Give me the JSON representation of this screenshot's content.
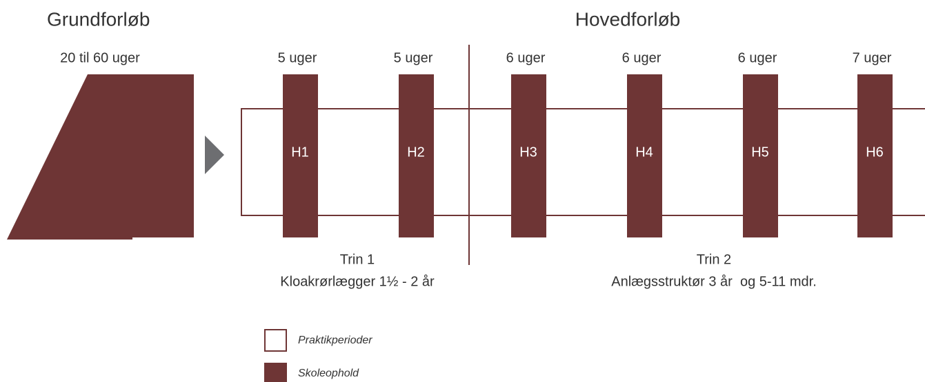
{
  "header": {
    "left_title": "Grundforløb",
    "right_title": "Hovedforløb"
  },
  "grundforloeb": {
    "duration": "20 til 60 uger"
  },
  "blocks": [
    {
      "label": "H1",
      "duration": "5 uger"
    },
    {
      "label": "H2",
      "duration": "5 uger"
    },
    {
      "label": "H3",
      "duration": "6 uger"
    },
    {
      "label": "H4",
      "duration": "6 uger"
    },
    {
      "label": "H5",
      "duration": "6 uger"
    },
    {
      "label": "H6",
      "duration": "7 uger"
    }
  ],
  "stages": [
    {
      "name": "Trin 1",
      "description": "Kloakrørlægger 1½ - 2 år"
    },
    {
      "name": "Trin 2",
      "description": "Anlægsstruktør 3 år  og 5-11 mdr."
    }
  ],
  "legend": [
    {
      "label": "Praktikperioder"
    },
    {
      "label": "Skoleophold"
    }
  ]
}
